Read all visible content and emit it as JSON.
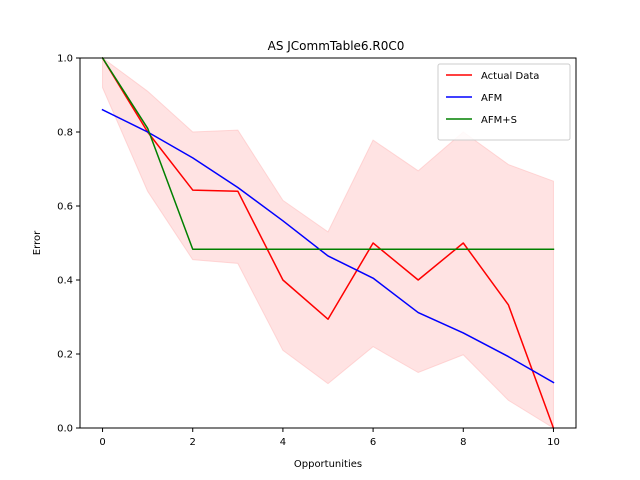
{
  "chart_data": {
    "type": "line",
    "title": "AS JCommTable6.R0C0",
    "xlabel": "Opportunities",
    "ylabel": "Error",
    "xlim": [
      -0.5,
      10.5
    ],
    "ylim": [
      0,
      1
    ],
    "xticks": [
      0,
      2,
      4,
      6,
      8,
      10
    ],
    "yticks": [
      0.0,
      0.2,
      0.4,
      0.6,
      0.8,
      1.0
    ],
    "grid": false,
    "legend_position": "top-right",
    "x": [
      0,
      1,
      2,
      3,
      4,
      5,
      6,
      7,
      8,
      9,
      10
    ],
    "series": [
      {
        "name": "Actual Data",
        "color": "#ff0000",
        "values": [
          1.0,
          0.8,
          0.643,
          0.64,
          0.4,
          0.294,
          0.5,
          0.4,
          0.5,
          0.333,
          0.0
        ]
      },
      {
        "name": "AFM",
        "color": "#0000ff",
        "values": [
          0.86,
          0.8,
          0.73,
          0.65,
          0.56,
          0.465,
          0.405,
          0.312,
          0.257,
          0.193,
          0.123
        ]
      },
      {
        "name": "AFM+S",
        "color": "#008000",
        "values": [
          1.0,
          0.81,
          0.483,
          0.483,
          0.483,
          0.483,
          0.483,
          0.483,
          0.483,
          0.483,
          0.483
        ]
      }
    ],
    "band": {
      "color": "#ffc0c0",
      "upper": [
        1.0,
        0.91,
        0.8,
        0.805,
        0.615,
        0.53,
        0.778,
        0.695,
        0.8,
        0.712,
        0.667
      ],
      "lower": [
        0.92,
        0.64,
        0.455,
        0.445,
        0.21,
        0.12,
        0.22,
        0.15,
        0.198,
        0.075,
        0.0
      ]
    }
  }
}
